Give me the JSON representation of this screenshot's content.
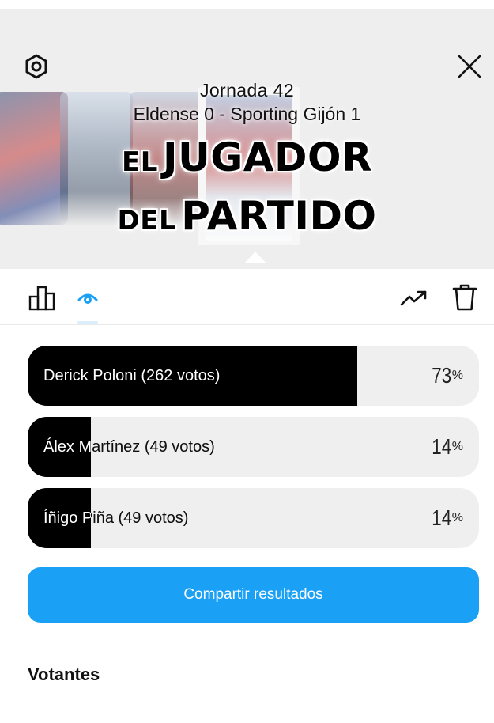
{
  "header": {
    "jornada": "Jornada 42",
    "match": "Eldense 0 - Sporting Gijón 1",
    "title_line1_small": "EL",
    "title_line1_big": "JUGADOR",
    "title_line2_small": "DEL",
    "title_line2_big": "PARTIDO"
  },
  "icons": {
    "settings": "settings-icon",
    "close": "close-icon",
    "chart": "bar-chart-icon",
    "eye": "eye-icon",
    "trend": "trending-icon",
    "delete": "trash-icon"
  },
  "poll": {
    "results": [
      {
        "label": "Derick Poloni (262 votos)",
        "percent": "73",
        "fill": 0.73
      },
      {
        "label": "Álex Martínez (49 votos)",
        "percent": "14",
        "fill": 0.14
      },
      {
        "label": "Íñigo Piña (49 votos)",
        "percent": "14",
        "fill": 0.14
      }
    ],
    "percent_symbol": "%"
  },
  "share_label": "Compartir resultados",
  "voters_title": "Votantes",
  "colors": {
    "accent": "#1aa1f5",
    "bar_fill": "#000000",
    "bar_track": "#efefef"
  }
}
